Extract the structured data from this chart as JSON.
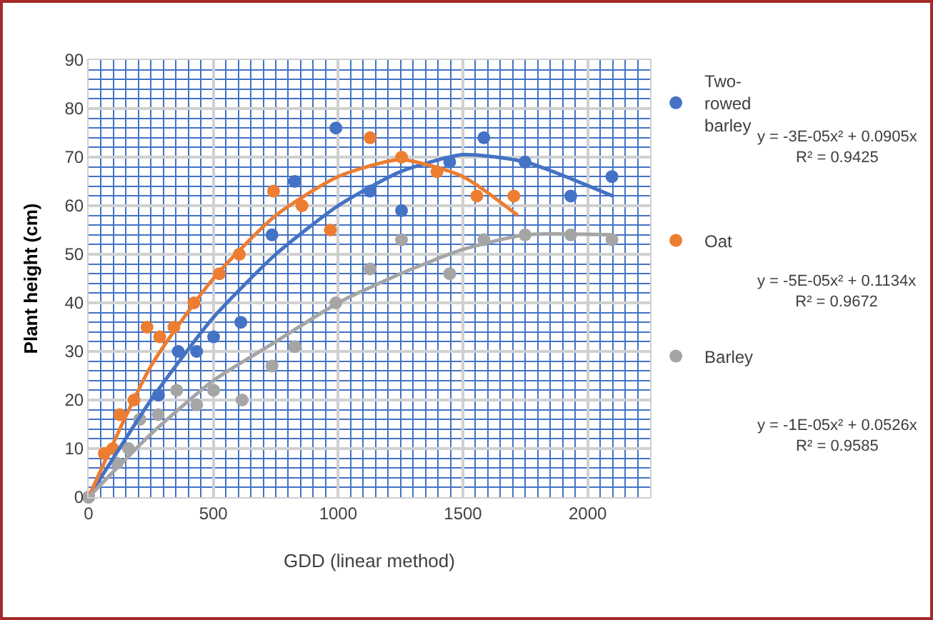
{
  "chart_data": {
    "type": "scatter",
    "xlabel": "GDD (linear method)",
    "ylabel": "Plant height (cm)",
    "xlim": [
      0,
      2250
    ],
    "ylim": [
      0,
      90
    ],
    "xticks": [
      0,
      {
        "value": 50,
        "label": null
      },
      {
        "value": 100,
        "label": null
      },
      {
        "value": 150,
        "label": null
      },
      {
        "value": 200,
        "label": null
      },
      {
        "value": 250,
        "label": null
      },
      {
        "value": 300,
        "label": null
      },
      {
        "value": 350,
        "label": null
      },
      {
        "value": 400,
        "label": null
      },
      {
        "value": 450,
        "label": null
      },
      500,
      {
        "value": 550,
        "label": null
      },
      {
        "value": 600,
        "label": null
      },
      {
        "value": 650,
        "label": null
      },
      {
        "value": 700,
        "label": null
      },
      {
        "value": 750,
        "label": null
      },
      {
        "value": 800,
        "label": null
      },
      {
        "value": 850,
        "label": null
      },
      {
        "value": 900,
        "label": null
      },
      {
        "value": 950,
        "label": null
      },
      1000,
      {
        "value": 1050,
        "label": null
      },
      {
        "value": 1100,
        "label": null
      },
      {
        "value": 1150,
        "label": null
      },
      {
        "value": 1200,
        "label": null
      },
      {
        "value": 1250,
        "label": null
      },
      {
        "value": 1300,
        "label": null
      },
      {
        "value": 1350,
        "label": null
      },
      {
        "value": 1400,
        "label": null
      },
      {
        "value": 1450,
        "label": null
      },
      1500,
      {
        "value": 1550,
        "label": null
      },
      {
        "value": 1600,
        "label": null
      },
      {
        "value": 1650,
        "label": null
      },
      {
        "value": 1700,
        "label": null
      },
      {
        "value": 1750,
        "label": null
      },
      {
        "value": 1800,
        "label": null
      },
      {
        "value": 1850,
        "label": null
      },
      {
        "value": 1900,
        "label": null
      },
      {
        "value": 1950,
        "label": null
      },
      2000,
      {
        "value": 2050,
        "label": null
      },
      {
        "value": 2100,
        "label": null
      },
      {
        "value": 2150,
        "label": null
      },
      {
        "value": 2200,
        "label": null
      },
      {
        "value": 2250,
        "label": null
      }
    ],
    "yticks": [
      0,
      {
        "value": 2,
        "label": null
      },
      {
        "value": 4,
        "label": null
      },
      {
        "value": 6,
        "label": null
      },
      {
        "value": 8,
        "label": null
      },
      10,
      {
        "value": 12,
        "label": null
      },
      {
        "value": 14,
        "label": null
      },
      {
        "value": 16,
        "label": null
      },
      {
        "value": 18,
        "label": null
      },
      20,
      {
        "value": 22,
        "label": null
      },
      {
        "value": 24,
        "label": null
      },
      {
        "value": 26,
        "label": null
      },
      {
        "value": 28,
        "label": null
      },
      30,
      {
        "value": 32,
        "label": null
      },
      {
        "value": 34,
        "label": null
      },
      {
        "value": 36,
        "label": null
      },
      {
        "value": 38,
        "label": null
      },
      40,
      {
        "value": 42,
        "label": null
      },
      {
        "value": 44,
        "label": null
      },
      {
        "value": 46,
        "label": null
      },
      {
        "value": 48,
        "label": null
      },
      50,
      {
        "value": 52,
        "label": null
      },
      {
        "value": 54,
        "label": null
      },
      {
        "value": 56,
        "label": null
      },
      {
        "value": 58,
        "label": null
      },
      60,
      {
        "value": 62,
        "label": null
      },
      {
        "value": 64,
        "label": null
      },
      {
        "value": 66,
        "label": null
      },
      {
        "value": 68,
        "label": null
      },
      70,
      {
        "value": 72,
        "label": null
      },
      {
        "value": 74,
        "label": null
      },
      {
        "value": 76,
        "label": null
      },
      {
        "value": 78,
        "label": null
      },
      80,
      {
        "value": 82,
        "label": null
      },
      {
        "value": 84,
        "label": null
      },
      {
        "value": 86,
        "label": null
      },
      {
        "value": 88,
        "label": null
      },
      90
    ],
    "grid": true,
    "legend": "right",
    "marker": "circle",
    "series": [
      {
        "name": "Two-rowed barley",
        "color": "#4472c4",
        "x": [
          0,
          280,
          359,
          433,
          501,
          610,
          735,
          826,
          991,
          1128,
          1254,
          1447,
          1584,
          1749,
          1932,
          2097
        ],
        "values": [
          0,
          21,
          30,
          30,
          33,
          36,
          54,
          65,
          76,
          63,
          59,
          69,
          74,
          69,
          62,
          66
        ]
      },
      {
        "name": "Oat",
        "color": "#ed7d31",
        "x": [
          0,
          63,
          97,
          125,
          182,
          234,
          285,
          342,
          422,
          524,
          604,
          741,
          855,
          969,
          1128,
          1254,
          1396,
          1556,
          1704
        ],
        "values": [
          0,
          9,
          10,
          17,
          20,
          35,
          33,
          35,
          40,
          46,
          50,
          63,
          60,
          55,
          74,
          70,
          67,
          62,
          62
        ]
      },
      {
        "name": "Barley",
        "color": "#a5a5a5",
        "x": [
          0,
          114,
          160,
          205,
          279,
          353,
          433,
          501,
          615,
          735,
          826,
          991,
          1128,
          1254,
          1447,
          1584,
          1749,
          1932,
          2097
        ],
        "values": [
          0,
          7,
          10,
          16,
          17,
          22,
          19,
          22,
          20,
          27,
          31,
          40,
          47,
          53,
          46,
          53,
          54,
          54,
          53
        ]
      },
      {
        "type": "line",
        "marker": "none",
        "color": "#4472c4",
        "x": [
          0,
          250,
          500,
          750,
          1000,
          1250,
          1500,
          1750,
          2100
        ],
        "values": [
          0,
          20,
          37,
          50,
          60,
          67,
          70.5,
          69,
          62
        ]
      },
      {
        "type": "line",
        "marker": "none",
        "color": "#ed7d31",
        "x": [
          0,
          250,
          500,
          750,
          1000,
          1250,
          1500,
          1720
        ],
        "values": [
          0,
          27,
          45,
          58,
          66,
          69.5,
          66,
          58
        ]
      },
      {
        "type": "line",
        "marker": "none",
        "color": "#a5a5a5",
        "x": [
          0,
          250,
          500,
          750,
          1000,
          1250,
          1500,
          1750,
          2100
        ],
        "values": [
          0,
          13,
          24,
          32,
          40,
          46,
          51,
          54,
          54
        ]
      }
    ],
    "annotations": [
      "y = -3E-05x² + 0.0905x\nR² = 0.9425",
      "y = -5E-05x² + 0.1134x\nR² = 0.9672",
      "y = -1E-05x² + 0.0526x\nR² = 0.9585"
    ]
  }
}
